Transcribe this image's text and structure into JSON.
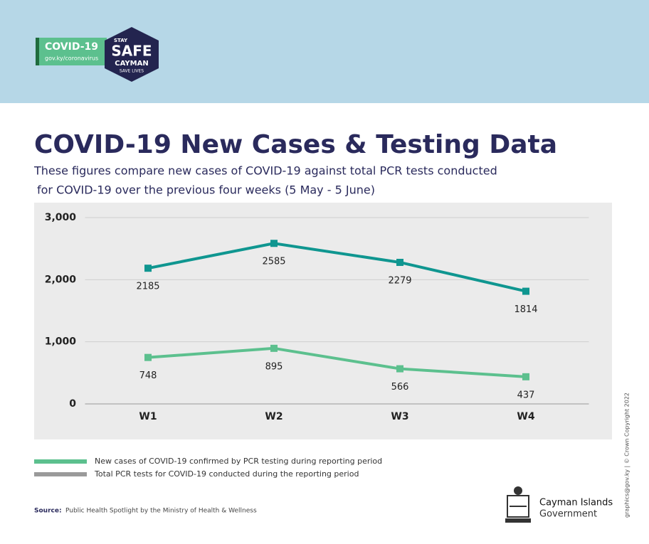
{
  "header": {
    "badge": "COVID-19",
    "url": "gov.ky/coronavirus",
    "stay": "STAY",
    "safe": "SAFE",
    "cayman": "CAYMAN",
    "save": "SAVE LIVES"
  },
  "chart_data": {
    "type": "line",
    "title": "COVID-19 New Cases & Testing Data",
    "subtitle": [
      "These figures compare new cases of COVID-19 against total PCR tests conducted",
      "for COVID-19 over the previous four weeks (5 May - 5 June)"
    ],
    "categories": [
      "W1",
      "W2",
      "W3",
      "W4"
    ],
    "series": [
      {
        "name": "New cases  of COVID-19 confirmed by PCR testing  during reporting period",
        "color": "#5cc08e",
        "legend_color": "#5cc08e",
        "values": [
          748,
          895,
          566,
          437
        ]
      },
      {
        "name": "Total PCR tests for COVID-19 conducted during the reporting period",
        "color": "#0f9690",
        "legend_color": "#9a9a9a",
        "values": [
          2185,
          2585,
          2279,
          1814
        ]
      }
    ],
    "ylim": [
      0,
      3000
    ],
    "yticks": [
      0,
      {
        "value": 1000,
        "label": "1,000"
      },
      {
        "value": 2000,
        "label": "2,000"
      },
      {
        "value": 3000,
        "label": "3,000"
      }
    ],
    "grid": true
  },
  "footer": {
    "source_label": "Source:",
    "source": "Public Health Spotlight by the Ministry of Health & Wellness",
    "gov1": "Cayman Islands",
    "gov2": "Government",
    "copyright": "graphics@gov.ky | © Crown Copyright 2022"
  }
}
